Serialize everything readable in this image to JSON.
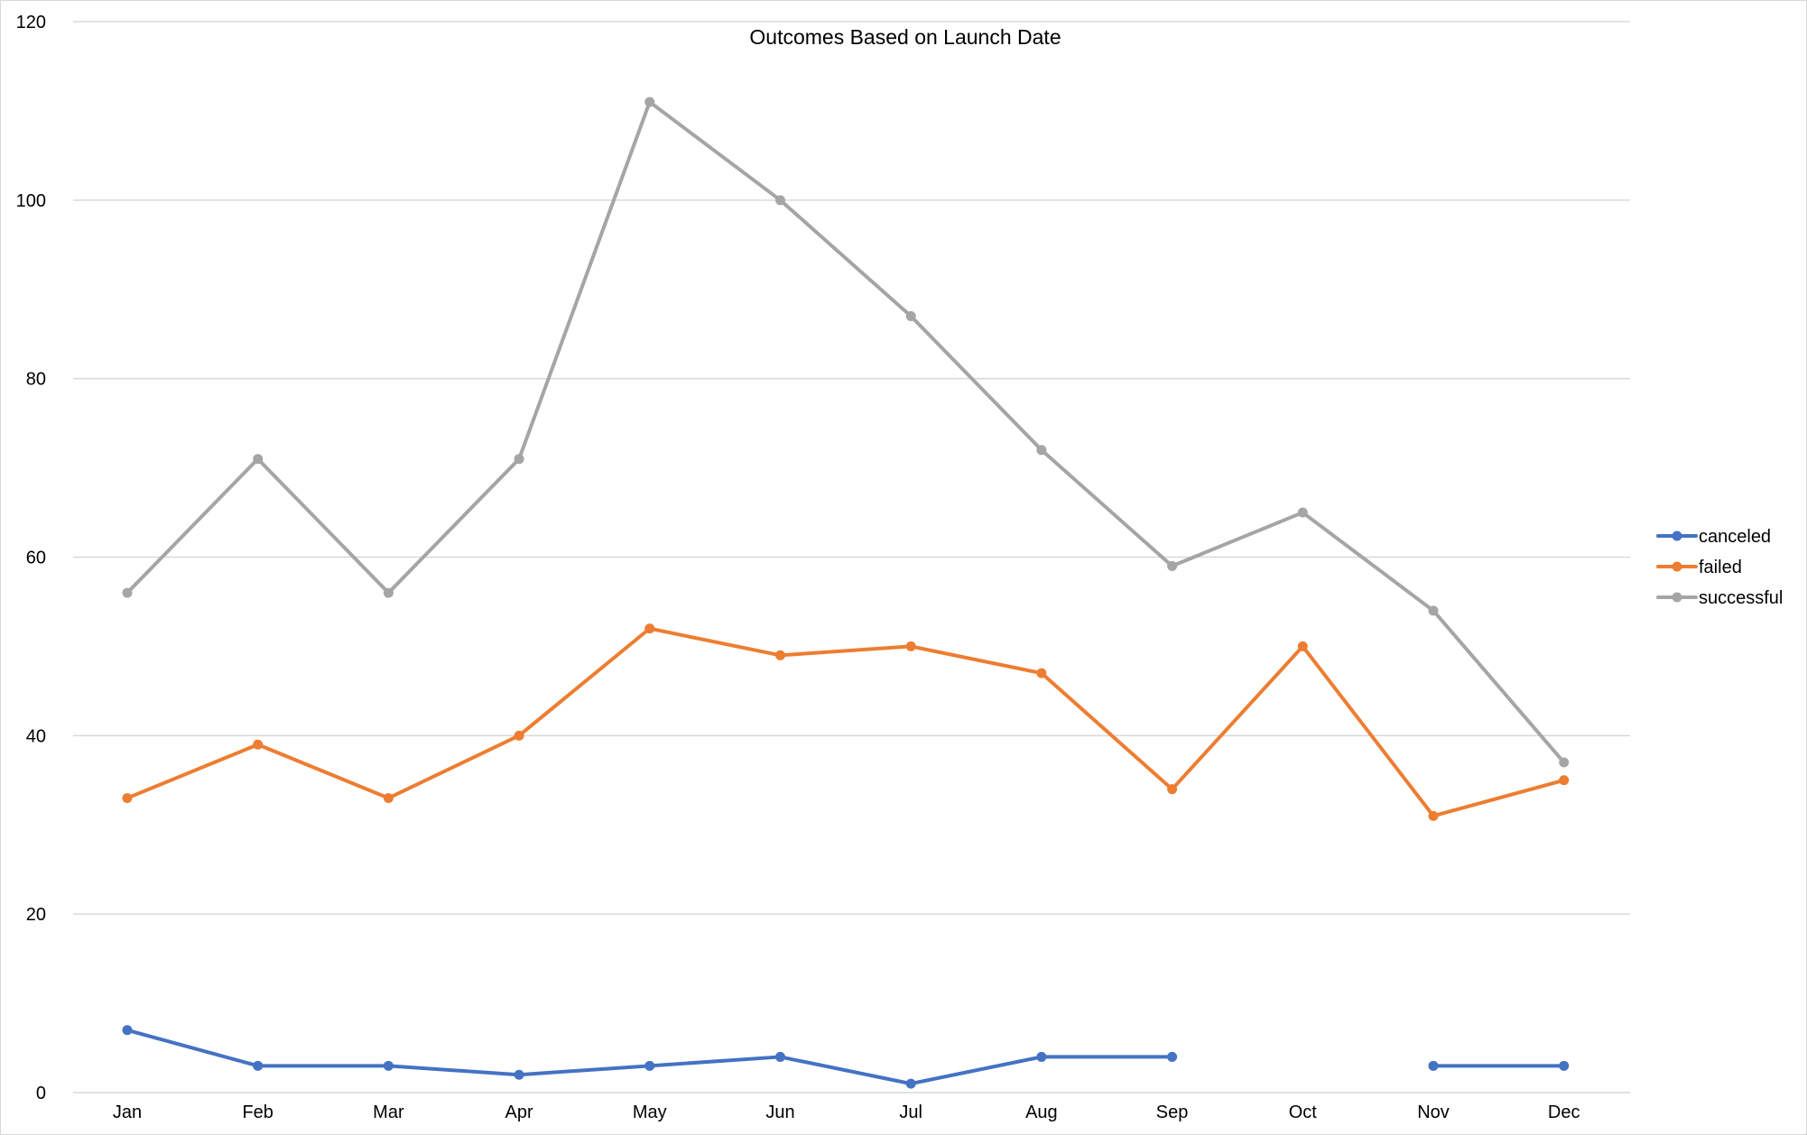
{
  "chart_data": {
    "type": "line",
    "title": "Outcomes Based on Launch Date",
    "xlabel": "",
    "ylabel": "",
    "categories": [
      "Jan",
      "Feb",
      "Mar",
      "Apr",
      "May",
      "Jun",
      "Jul",
      "Aug",
      "Sep",
      "Oct",
      "Nov",
      "Dec"
    ],
    "ylim": [
      0,
      120
    ],
    "yticks": [
      0,
      20,
      40,
      60,
      80,
      100,
      120
    ],
    "grid": true,
    "legend": "right",
    "series": [
      {
        "name": "canceled",
        "color": "#4472c4",
        "values": [
          7,
          3,
          3,
          2,
          3,
          4,
          1,
          4,
          4,
          null,
          3,
          3
        ]
      },
      {
        "name": "failed",
        "color": "#ed7d31",
        "values": [
          33,
          39,
          33,
          40,
          52,
          49,
          50,
          47,
          34,
          50,
          31,
          35
        ]
      },
      {
        "name": "successful",
        "color": "#a5a5a5",
        "values": [
          56,
          71,
          56,
          71,
          111,
          100,
          87,
          72,
          59,
          65,
          54,
          37
        ]
      }
    ]
  }
}
